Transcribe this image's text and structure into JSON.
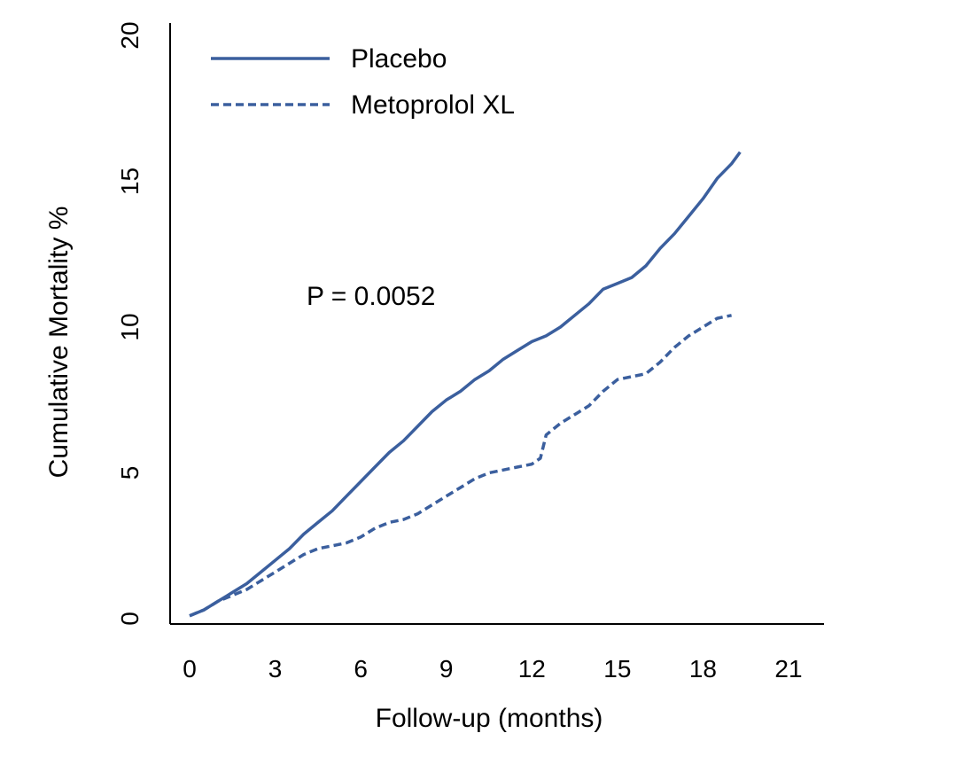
{
  "chart_data": {
    "type": "line",
    "title": "",
    "xlabel": "Follow-up (months)",
    "ylabel": "Cumulative Mortality %",
    "xlim": [
      0,
      21
    ],
    "ylim": [
      0,
      20
    ],
    "x_ticks": [
      0,
      3,
      6,
      9,
      12,
      15,
      18,
      21
    ],
    "y_ticks": [
      0,
      5,
      10,
      15,
      20
    ],
    "grid": false,
    "legend_position": "top-left",
    "annotation": "P = 0.0052",
    "series": [
      {
        "name": "Placebo",
        "style": "solid",
        "color": "#3b5f9e",
        "x": [
          0,
          0.5,
          1,
          1.5,
          2,
          2.5,
          3,
          3.5,
          4,
          4.5,
          5,
          5.5,
          6,
          6.5,
          7,
          7.5,
          8,
          8.5,
          9,
          9.5,
          10,
          10.5,
          11,
          11.5,
          12,
          12.5,
          13,
          13.5,
          14,
          14.5,
          15,
          15.5,
          16,
          16.5,
          17,
          17.5,
          18,
          18.5,
          19,
          19.3
        ],
        "y": [
          0.1,
          0.3,
          0.6,
          0.9,
          1.2,
          1.6,
          2.0,
          2.4,
          2.9,
          3.3,
          3.7,
          4.2,
          4.7,
          5.2,
          5.7,
          6.1,
          6.6,
          7.1,
          7.5,
          7.8,
          8.2,
          8.5,
          8.9,
          9.2,
          9.5,
          9.7,
          10.0,
          10.4,
          10.8,
          11.3,
          11.5,
          11.7,
          12.1,
          12.7,
          13.2,
          13.8,
          14.4,
          15.1,
          15.6,
          16.0
        ]
      },
      {
        "name": "Metoprolol XL",
        "style": "dashed",
        "color": "#3b5f9e",
        "x": [
          0,
          0.5,
          1,
          1.5,
          2,
          2.5,
          3,
          3.5,
          4,
          4.5,
          5,
          5.5,
          6,
          6.5,
          7,
          7.5,
          8,
          8.5,
          9,
          9.5,
          10,
          10.5,
          11,
          11.5,
          12,
          12.3,
          12.5,
          13,
          13.5,
          14,
          14.5,
          15,
          15.5,
          16,
          16.5,
          17,
          17.5,
          18,
          18.5,
          19
        ],
        "y": [
          0.1,
          0.3,
          0.6,
          0.8,
          1.0,
          1.3,
          1.6,
          1.9,
          2.2,
          2.4,
          2.5,
          2.6,
          2.8,
          3.1,
          3.3,
          3.4,
          3.6,
          3.9,
          4.2,
          4.5,
          4.8,
          5.0,
          5.1,
          5.2,
          5.3,
          5.5,
          6.3,
          6.7,
          7.0,
          7.3,
          7.8,
          8.2,
          8.3,
          8.4,
          8.8,
          9.3,
          9.7,
          10.0,
          10.3,
          10.4
        ]
      }
    ]
  }
}
